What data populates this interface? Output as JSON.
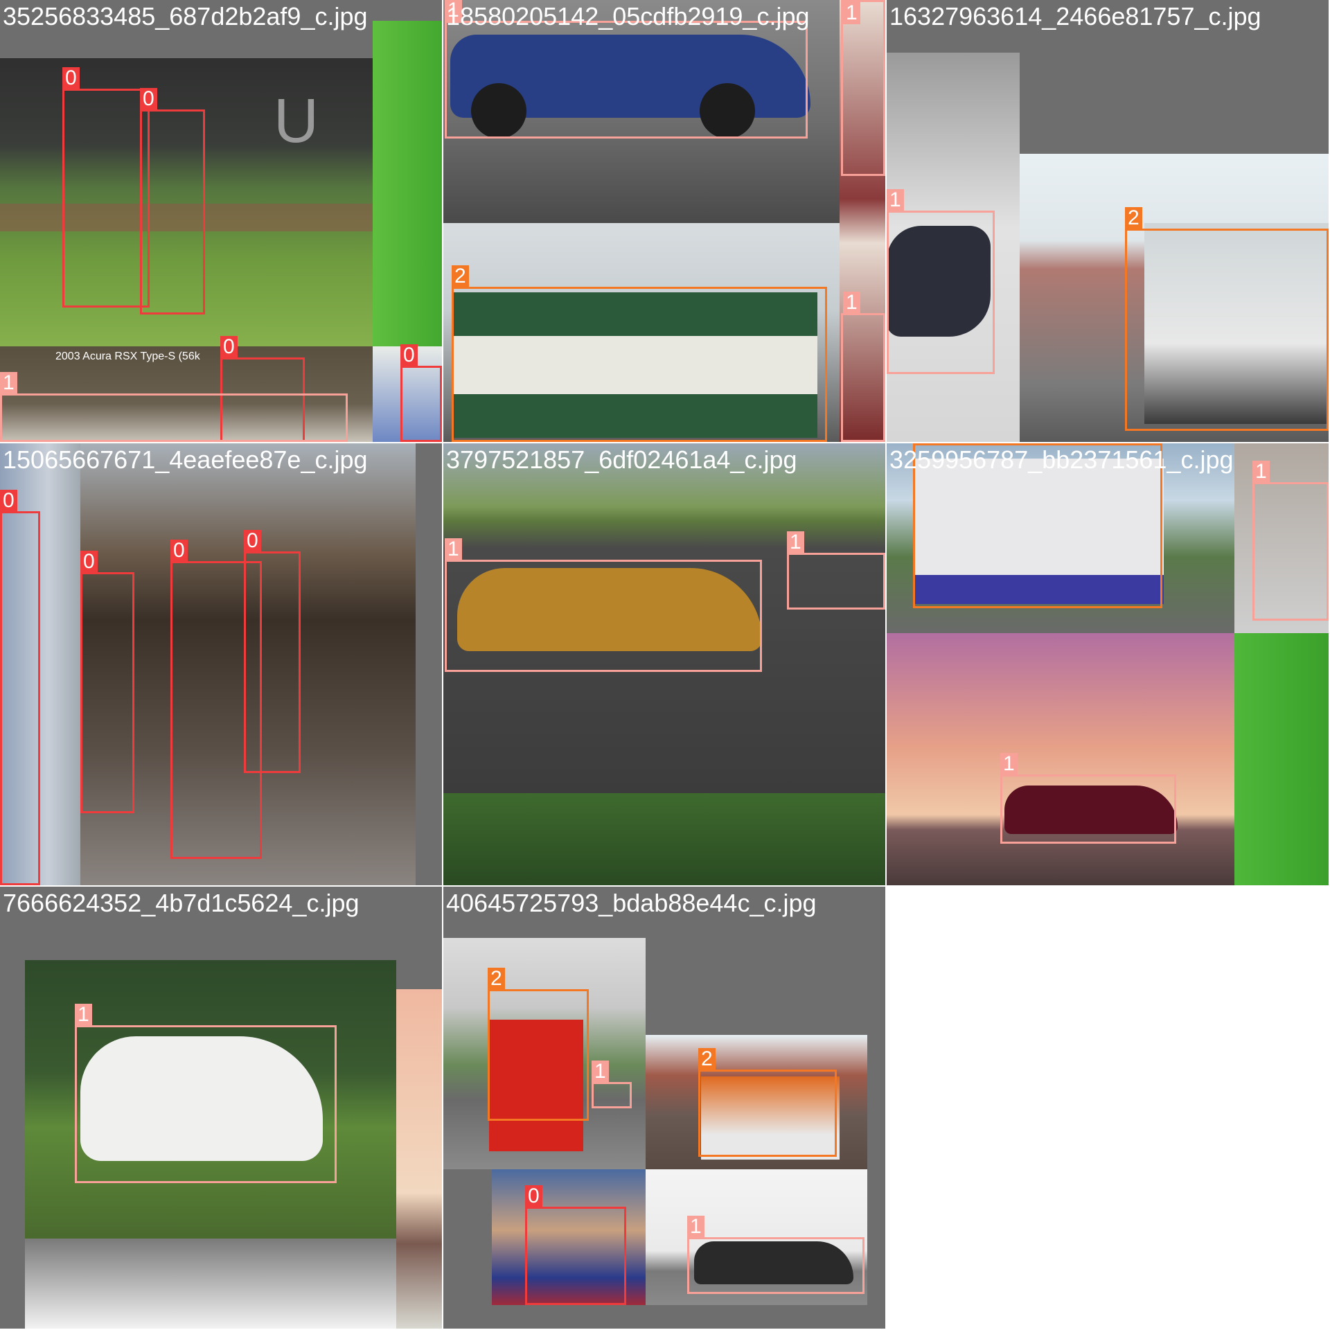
{
  "legend": {
    "class_0": {
      "id": "0",
      "color": "#ef3b3b"
    },
    "class_1": {
      "id": "1",
      "color": "#f7a199"
    },
    "class_2": {
      "id": "2",
      "color": "#f47724"
    }
  },
  "tiles": [
    {
      "filename": "35256833485_687d2b2af9_c.jpg",
      "labels": [
        "0",
        "0",
        "0",
        "0",
        "1"
      ],
      "photo_caption": "2003  Acura  RSX  Type-S  (56k"
    },
    {
      "filename": "18580205142_05cdfb2919_c.jpg",
      "labels": [
        "1",
        "1",
        "2",
        "1"
      ]
    },
    {
      "filename": "16327963614_2466e81757_c.jpg",
      "labels": [
        "1",
        "2"
      ]
    },
    {
      "filename": "15065667671_4eaefee87e_c.jpg",
      "labels": [
        "0",
        "0",
        "0",
        "0"
      ]
    },
    {
      "filename": "3797521857_6df02461a4_c.jpg",
      "labels": [
        "1",
        "1"
      ]
    },
    {
      "filename": "3259956787_bb2371561_c.jpg",
      "labels": [
        "2",
        "1",
        "1"
      ]
    },
    {
      "filename": "7666624352_4b7d1c5624_c.jpg",
      "labels": [
        "1"
      ]
    },
    {
      "filename": "40645725793_bdab88e44c_c.jpg",
      "labels": [
        "2",
        "1",
        "2",
        "0",
        "1"
      ]
    }
  ]
}
